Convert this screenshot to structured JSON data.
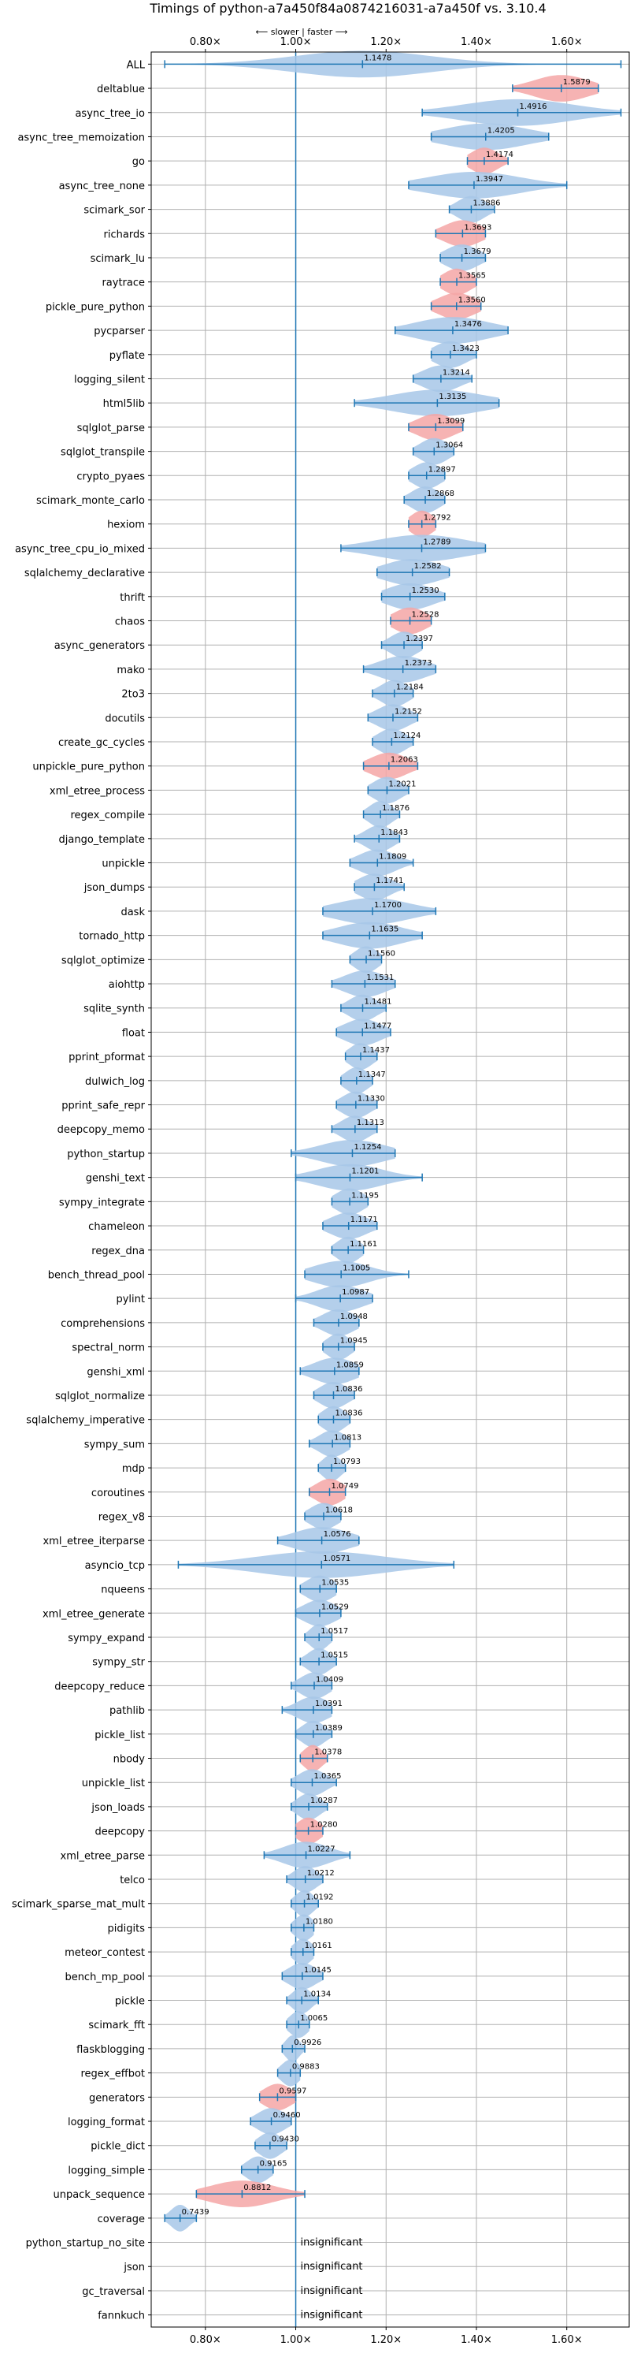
{
  "chart_data": {
    "type": "violin",
    "title": "Timings of python-a7a450f84a0874216031-a7a450f vs. 3.10.4",
    "direction_label": "⟵ slower | faster ⟶",
    "xlim": [
      0.68,
      1.74
    ],
    "xticks": [
      0.8,
      1.0,
      1.2,
      1.4,
      1.6
    ],
    "xtick_labels": [
      "0.80×",
      "1.00×",
      "1.20×",
      "1.40×",
      "1.60×"
    ],
    "reference_x": 1.0,
    "grid": true,
    "insignificant_label": "insignificant",
    "colors": {
      "faster": "#a7c7e7",
      "slower": "#f4a6a6",
      "axis": "#1f77b4",
      "grid": "#b0b0b0"
    },
    "benchmarks": [
      {
        "name": "ALL",
        "value": 1.1478,
        "label": "1.1478",
        "lo": 0.71,
        "hi": 1.72,
        "spread": 0.15,
        "color": "faster"
      },
      {
        "name": "deltablue",
        "value": 1.5879,
        "label": "1.5879",
        "lo": 1.48,
        "hi": 1.67,
        "spread": 0.06,
        "color": "slower"
      },
      {
        "name": "async_tree_io",
        "value": 1.4916,
        "label": "1.4916",
        "lo": 1.28,
        "hi": 1.72,
        "spread": 0.12,
        "color": "faster"
      },
      {
        "name": "async_tree_memoization",
        "value": 1.4205,
        "label": "1.4205",
        "lo": 1.3,
        "hi": 1.56,
        "spread": 0.09,
        "color": "faster"
      },
      {
        "name": "go",
        "value": 1.4174,
        "label": "1.4174",
        "lo": 1.38,
        "hi": 1.47,
        "spread": 0.03,
        "color": "slower"
      },
      {
        "name": "async_tree_none",
        "value": 1.3947,
        "label": "1.3947",
        "lo": 1.25,
        "hi": 1.6,
        "spread": 0.1,
        "color": "faster"
      },
      {
        "name": "scimark_sor",
        "value": 1.3886,
        "label": "1.3886",
        "lo": 1.34,
        "hi": 1.44,
        "spread": 0.03,
        "color": "faster"
      },
      {
        "name": "richards",
        "value": 1.3693,
        "label": "1.3693",
        "lo": 1.31,
        "hi": 1.42,
        "spread": 0.04,
        "color": "slower"
      },
      {
        "name": "scimark_lu",
        "value": 1.3679,
        "label": "1.3679",
        "lo": 1.32,
        "hi": 1.42,
        "spread": 0.035,
        "color": "faster"
      },
      {
        "name": "raytrace",
        "value": 1.3565,
        "label": "1.3565",
        "lo": 1.32,
        "hi": 1.4,
        "spread": 0.03,
        "color": "slower"
      },
      {
        "name": "pickle_pure_python",
        "value": 1.356,
        "label": "1.3560",
        "lo": 1.3,
        "hi": 1.41,
        "spread": 0.04,
        "color": "slower"
      },
      {
        "name": "pycparser",
        "value": 1.3476,
        "label": "1.3476",
        "lo": 1.22,
        "hi": 1.47,
        "spread": 0.08,
        "color": "faster"
      },
      {
        "name": "pyflate",
        "value": 1.3423,
        "label": "1.3423",
        "lo": 1.3,
        "hi": 1.4,
        "spread": 0.035,
        "color": "faster"
      },
      {
        "name": "logging_silent",
        "value": 1.3214,
        "label": "1.3214",
        "lo": 1.26,
        "hi": 1.39,
        "spread": 0.04,
        "color": "faster"
      },
      {
        "name": "html5lib",
        "value": 1.3135,
        "label": "1.3135",
        "lo": 1.13,
        "hi": 1.45,
        "spread": 0.1,
        "color": "faster"
      },
      {
        "name": "sqlglot_parse",
        "value": 1.3099,
        "label": "1.3099",
        "lo": 1.25,
        "hi": 1.37,
        "spread": 0.04,
        "color": "slower"
      },
      {
        "name": "sqlglot_transpile",
        "value": 1.3064,
        "label": "1.3064",
        "lo": 1.26,
        "hi": 1.35,
        "spread": 0.03,
        "color": "faster"
      },
      {
        "name": "crypto_pyaes",
        "value": 1.2897,
        "label": "1.2897",
        "lo": 1.25,
        "hi": 1.33,
        "spread": 0.03,
        "color": "faster"
      },
      {
        "name": "scimark_monte_carlo",
        "value": 1.2868,
        "label": "1.2868",
        "lo": 1.24,
        "hi": 1.33,
        "spread": 0.03,
        "color": "faster"
      },
      {
        "name": "hexiom",
        "value": 1.2792,
        "label": "1.2792",
        "lo": 1.25,
        "hi": 1.31,
        "spread": 0.025,
        "color": "slower"
      },
      {
        "name": "async_tree_cpu_io_mixed",
        "value": 1.2789,
        "label": "1.2789",
        "lo": 1.1,
        "hi": 1.42,
        "spread": 0.1,
        "color": "faster"
      },
      {
        "name": "sqlalchemy_declarative",
        "value": 1.2582,
        "label": "1.2582",
        "lo": 1.18,
        "hi": 1.34,
        "spread": 0.06,
        "color": "faster"
      },
      {
        "name": "thrift",
        "value": 1.253,
        "label": "1.2530",
        "lo": 1.19,
        "hi": 1.33,
        "spread": 0.05,
        "color": "faster"
      },
      {
        "name": "chaos",
        "value": 1.2528,
        "label": "1.2528",
        "lo": 1.21,
        "hi": 1.3,
        "spread": 0.035,
        "color": "slower"
      },
      {
        "name": "async_generators",
        "value": 1.2397,
        "label": "1.2397",
        "lo": 1.19,
        "hi": 1.28,
        "spread": 0.03,
        "color": "faster"
      },
      {
        "name": "mako",
        "value": 1.2373,
        "label": "1.2373",
        "lo": 1.15,
        "hi": 1.31,
        "spread": 0.05,
        "color": "faster"
      },
      {
        "name": "2to3",
        "value": 1.2184,
        "label": "1.2184",
        "lo": 1.17,
        "hi": 1.26,
        "spread": 0.03,
        "color": "faster"
      },
      {
        "name": "docutils",
        "value": 1.2152,
        "label": "1.2152",
        "lo": 1.16,
        "hi": 1.27,
        "spread": 0.035,
        "color": "faster"
      },
      {
        "name": "create_gc_cycles",
        "value": 1.2124,
        "label": "1.2124",
        "lo": 1.17,
        "hi": 1.26,
        "spread": 0.03,
        "color": "faster"
      },
      {
        "name": "unpickle_pure_python",
        "value": 1.2063,
        "label": "1.2063",
        "lo": 1.15,
        "hi": 1.27,
        "spread": 0.04,
        "color": "slower"
      },
      {
        "name": "xml_etree_process",
        "value": 1.2021,
        "label": "1.2021",
        "lo": 1.16,
        "hi": 1.25,
        "spread": 0.03,
        "color": "faster"
      },
      {
        "name": "regex_compile",
        "value": 1.1876,
        "label": "1.1876",
        "lo": 1.15,
        "hi": 1.23,
        "spread": 0.025,
        "color": "faster"
      },
      {
        "name": "django_template",
        "value": 1.1843,
        "label": "1.1843",
        "lo": 1.13,
        "hi": 1.23,
        "spread": 0.03,
        "color": "faster"
      },
      {
        "name": "unpickle",
        "value": 1.1809,
        "label": "1.1809",
        "lo": 1.12,
        "hi": 1.26,
        "spread": 0.04,
        "color": "faster"
      },
      {
        "name": "json_dumps",
        "value": 1.1741,
        "label": "1.1741",
        "lo": 1.13,
        "hi": 1.24,
        "spread": 0.035,
        "color": "faster"
      },
      {
        "name": "dask",
        "value": 1.17,
        "label": "1.1700",
        "lo": 1.06,
        "hi": 1.31,
        "spread": 0.08,
        "color": "faster"
      },
      {
        "name": "tornado_http",
        "value": 1.1635,
        "label": "1.1635",
        "lo": 1.06,
        "hi": 1.28,
        "spread": 0.07,
        "color": "faster"
      },
      {
        "name": "sqlglot_optimize",
        "value": 1.156,
        "label": "1.1560",
        "lo": 1.12,
        "hi": 1.19,
        "spread": 0.025,
        "color": "faster"
      },
      {
        "name": "aiohttp",
        "value": 1.1531,
        "label": "1.1531",
        "lo": 1.08,
        "hi": 1.22,
        "spread": 0.045,
        "color": "faster"
      },
      {
        "name": "sqlite_synth",
        "value": 1.1481,
        "label": "1.1481",
        "lo": 1.1,
        "hi": 1.2,
        "spread": 0.03,
        "color": "faster"
      },
      {
        "name": "float",
        "value": 1.1477,
        "label": "1.1477",
        "lo": 1.09,
        "hi": 1.21,
        "spread": 0.04,
        "color": "faster"
      },
      {
        "name": "pprint_pformat",
        "value": 1.1437,
        "label": "1.1437",
        "lo": 1.11,
        "hi": 1.18,
        "spread": 0.025,
        "color": "faster"
      },
      {
        "name": "dulwich_log",
        "value": 1.1347,
        "label": "1.1347",
        "lo": 1.1,
        "hi": 1.17,
        "spread": 0.025,
        "color": "faster"
      },
      {
        "name": "pprint_safe_repr",
        "value": 1.133,
        "label": "1.1330",
        "lo": 1.09,
        "hi": 1.18,
        "spread": 0.03,
        "color": "faster"
      },
      {
        "name": "deepcopy_memo",
        "value": 1.1313,
        "label": "1.1313",
        "lo": 1.08,
        "hi": 1.18,
        "spread": 0.03,
        "color": "faster"
      },
      {
        "name": "python_startup",
        "value": 1.1254,
        "label": "1.1254",
        "lo": 0.99,
        "hi": 1.22,
        "spread": 0.07,
        "color": "faster"
      },
      {
        "name": "genshi_text",
        "value": 1.1201,
        "label": "1.1201",
        "lo": 1.0,
        "hi": 1.28,
        "spread": 0.07,
        "color": "faster"
      },
      {
        "name": "sympy_integrate",
        "value": 1.1195,
        "label": "1.1195",
        "lo": 1.08,
        "hi": 1.16,
        "spread": 0.03,
        "color": "faster"
      },
      {
        "name": "chameleon",
        "value": 1.1171,
        "label": "1.1171",
        "lo": 1.06,
        "hi": 1.18,
        "spread": 0.04,
        "color": "faster"
      },
      {
        "name": "regex_dna",
        "value": 1.1161,
        "label": "1.1161",
        "lo": 1.08,
        "hi": 1.15,
        "spread": 0.025,
        "color": "faster"
      },
      {
        "name": "bench_thread_pool",
        "value": 1.1005,
        "label": "1.1005",
        "lo": 1.02,
        "hi": 1.25,
        "spread": 0.06,
        "color": "faster"
      },
      {
        "name": "pylint",
        "value": 1.0987,
        "label": "1.0987",
        "lo": 1.0,
        "hi": 1.17,
        "spread": 0.05,
        "color": "faster"
      },
      {
        "name": "comprehensions",
        "value": 1.0948,
        "label": "1.0948",
        "lo": 1.04,
        "hi": 1.14,
        "spread": 0.035,
        "color": "faster"
      },
      {
        "name": "spectral_norm",
        "value": 1.0945,
        "label": "1.0945",
        "lo": 1.06,
        "hi": 1.13,
        "spread": 0.025,
        "color": "faster"
      },
      {
        "name": "genshi_xml",
        "value": 1.0859,
        "label": "1.0859",
        "lo": 1.01,
        "hi": 1.14,
        "spread": 0.045,
        "color": "faster"
      },
      {
        "name": "sqlglot_normalize",
        "value": 1.0836,
        "label": "1.0836",
        "lo": 1.04,
        "hi": 1.13,
        "spread": 0.03,
        "color": "faster"
      },
      {
        "name": "sqlalchemy_imperative",
        "value": 1.0836,
        "label": "1.0836",
        "lo": 1.05,
        "hi": 1.12,
        "spread": 0.025,
        "color": "faster"
      },
      {
        "name": "sympy_sum",
        "value": 1.0813,
        "label": "1.0813",
        "lo": 1.03,
        "hi": 1.12,
        "spread": 0.03,
        "color": "faster"
      },
      {
        "name": "mdp",
        "value": 1.0793,
        "label": "1.0793",
        "lo": 1.05,
        "hi": 1.11,
        "spread": 0.02,
        "color": "faster"
      },
      {
        "name": "coroutines",
        "value": 1.0749,
        "label": "1.0749",
        "lo": 1.03,
        "hi": 1.11,
        "spread": 0.03,
        "color": "slower"
      },
      {
        "name": "regex_v8",
        "value": 1.0618,
        "label": "1.0618",
        "lo": 1.02,
        "hi": 1.1,
        "spread": 0.03,
        "color": "faster"
      },
      {
        "name": "xml_etree_iterparse",
        "value": 1.0576,
        "label": "1.0576",
        "lo": 0.96,
        "hi": 1.14,
        "spread": 0.06,
        "color": "faster"
      },
      {
        "name": "asyncio_tcp",
        "value": 1.0571,
        "label": "1.0571",
        "lo": 0.74,
        "hi": 1.35,
        "spread": 0.14,
        "color": "faster"
      },
      {
        "name": "nqueens",
        "value": 1.0535,
        "label": "1.0535",
        "lo": 1.01,
        "hi": 1.09,
        "spread": 0.03,
        "color": "faster"
      },
      {
        "name": "xml_etree_generate",
        "value": 1.0529,
        "label": "1.0529",
        "lo": 1.0,
        "hi": 1.1,
        "spread": 0.035,
        "color": "faster"
      },
      {
        "name": "sympy_expand",
        "value": 1.0517,
        "label": "1.0517",
        "lo": 1.02,
        "hi": 1.08,
        "spread": 0.02,
        "color": "faster"
      },
      {
        "name": "sympy_str",
        "value": 1.0515,
        "label": "1.0515",
        "lo": 1.01,
        "hi": 1.09,
        "spread": 0.025,
        "color": "faster"
      },
      {
        "name": "deepcopy_reduce",
        "value": 1.0409,
        "label": "1.0409",
        "lo": 0.99,
        "hi": 1.08,
        "spread": 0.03,
        "color": "faster"
      },
      {
        "name": "pathlib",
        "value": 1.0391,
        "label": "1.0391",
        "lo": 0.97,
        "hi": 1.08,
        "spread": 0.035,
        "color": "faster"
      },
      {
        "name": "pickle_list",
        "value": 1.0389,
        "label": "1.0389",
        "lo": 1.0,
        "hi": 1.08,
        "spread": 0.025,
        "color": "faster"
      },
      {
        "name": "nbody",
        "value": 1.0378,
        "label": "1.0378",
        "lo": 1.01,
        "hi": 1.07,
        "spread": 0.02,
        "color": "slower"
      },
      {
        "name": "unpickle_list",
        "value": 1.0365,
        "label": "1.0365",
        "lo": 0.99,
        "hi": 1.09,
        "spread": 0.03,
        "color": "faster"
      },
      {
        "name": "json_loads",
        "value": 1.0287,
        "label": "1.0287",
        "lo": 0.99,
        "hi": 1.07,
        "spread": 0.025,
        "color": "faster"
      },
      {
        "name": "deepcopy",
        "value": 1.028,
        "label": "1.0280",
        "lo": 1.0,
        "hi": 1.06,
        "spread": 0.025,
        "color": "slower"
      },
      {
        "name": "xml_etree_parse",
        "value": 1.0227,
        "label": "1.0227",
        "lo": 0.93,
        "hi": 1.12,
        "spread": 0.05,
        "color": "faster"
      },
      {
        "name": "telco",
        "value": 1.0212,
        "label": "1.0212",
        "lo": 0.98,
        "hi": 1.06,
        "spread": 0.025,
        "color": "faster"
      },
      {
        "name": "scimark_sparse_mat_mult",
        "value": 1.0192,
        "label": "1.0192",
        "lo": 0.99,
        "hi": 1.05,
        "spread": 0.02,
        "color": "faster"
      },
      {
        "name": "pidigits",
        "value": 1.018,
        "label": "1.0180",
        "lo": 0.99,
        "hi": 1.04,
        "spread": 0.02,
        "color": "faster"
      },
      {
        "name": "meteor_contest",
        "value": 1.0161,
        "label": "1.0161",
        "lo": 0.99,
        "hi": 1.04,
        "spread": 0.02,
        "color": "faster"
      },
      {
        "name": "bench_mp_pool",
        "value": 1.0145,
        "label": "1.0145",
        "lo": 0.97,
        "hi": 1.06,
        "spread": 0.03,
        "color": "faster"
      },
      {
        "name": "pickle",
        "value": 1.0134,
        "label": "1.0134",
        "lo": 0.98,
        "hi": 1.05,
        "spread": 0.02,
        "color": "faster"
      },
      {
        "name": "scimark_fft",
        "value": 1.0065,
        "label": "1.0065",
        "lo": 0.98,
        "hi": 1.03,
        "spread": 0.02,
        "color": "faster"
      },
      {
        "name": "flaskblogging",
        "value": 0.9926,
        "label": "0.9926",
        "lo": 0.97,
        "hi": 1.02,
        "spread": 0.015,
        "color": "faster"
      },
      {
        "name": "regex_effbot",
        "value": 0.9883,
        "label": "0.9883",
        "lo": 0.96,
        "hi": 1.01,
        "spread": 0.02,
        "color": "faster"
      },
      {
        "name": "generators",
        "value": 0.9597,
        "label": "0.9597",
        "lo": 0.92,
        "hi": 1.0,
        "spread": 0.03,
        "color": "slower"
      },
      {
        "name": "logging_format",
        "value": 0.946,
        "label": "0.9460",
        "lo": 0.9,
        "hi": 0.99,
        "spread": 0.03,
        "color": "faster"
      },
      {
        "name": "pickle_dict",
        "value": 0.943,
        "label": "0.9430",
        "lo": 0.91,
        "hi": 0.98,
        "spread": 0.025,
        "color": "faster"
      },
      {
        "name": "logging_simple",
        "value": 0.9165,
        "label": "0.9165",
        "lo": 0.88,
        "hi": 0.95,
        "spread": 0.025,
        "color": "faster"
      },
      {
        "name": "unpack_sequence",
        "value": 0.8812,
        "label": "0.8812",
        "lo": 0.78,
        "hi": 1.02,
        "spread": 0.07,
        "color": "slower"
      },
      {
        "name": "coverage",
        "value": 0.7439,
        "label": "0.7439",
        "lo": 0.71,
        "hi": 0.78,
        "spread": 0.02,
        "color": "faster"
      },
      {
        "name": "python_startup_no_site",
        "value": null,
        "label": "insignificant"
      },
      {
        "name": "json",
        "value": null,
        "label": "insignificant"
      },
      {
        "name": "gc_traversal",
        "value": null,
        "label": "insignificant"
      },
      {
        "name": "fannkuch",
        "value": null,
        "label": "insignificant"
      }
    ]
  }
}
